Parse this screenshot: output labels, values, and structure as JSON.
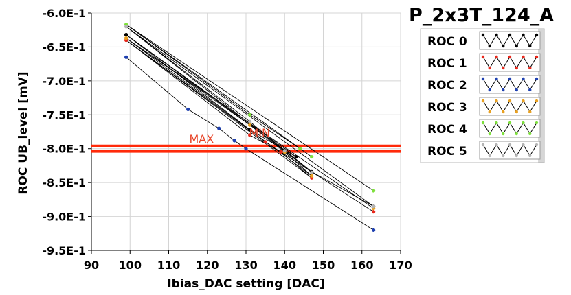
{
  "chart_data": {
    "type": "line",
    "title": "P_2x3T_124_A",
    "xlabel": "Ibias_DAC setting [DAC]",
    "ylabel": "ROC UB_level [mV]",
    "xlim": [
      90,
      170
    ],
    "ylim": [
      -0.95,
      -0.6
    ],
    "x_ticks": [
      90,
      100,
      110,
      120,
      130,
      140,
      150,
      160,
      170
    ],
    "x_tick_labels": [
      "90",
      "100",
      "110",
      "120",
      "130",
      "140",
      "150",
      "160",
      "170"
    ],
    "y_ticks": [
      -0.6,
      -0.65,
      -0.7,
      -0.75,
      -0.8,
      -0.85,
      -0.9,
      -0.95
    ],
    "y_tick_labels": [
      "-6.0E-1",
      "-6.5E-1",
      "-7.0E-1",
      "-7.5E-1",
      "-8.0E-1",
      "-8.5E-1",
      "-9.0E-1",
      "-9.5E-1"
    ],
    "legend_position": "right",
    "series": [
      {
        "name": "ROC 0",
        "color": "#000000",
        "x": [
          99,
          131,
          143,
          99,
          140,
          147,
          163
        ],
        "y": [
          -0.632,
          -0.772,
          -0.812,
          -0.632,
          -0.802,
          -0.834,
          -0.885
        ]
      },
      {
        "name": "ROC 1",
        "color": "#e8261a",
        "x": [
          99,
          131,
          139,
          147,
          99,
          135,
          163
        ],
        "y": [
          -0.64,
          -0.78,
          -0.805,
          -0.843,
          -0.64,
          -0.79,
          -0.893
        ]
      },
      {
        "name": "ROC 2",
        "color": "#1e40b0",
        "x": [
          99,
          115,
          123,
          127,
          130,
          163
        ],
        "y": [
          -0.665,
          -0.742,
          -0.77,
          -0.788,
          -0.8,
          -0.92
        ]
      },
      {
        "name": "ROC 3",
        "color": "#e8a020",
        "x": [
          99,
          131,
          140,
          147,
          99,
          163
        ],
        "y": [
          -0.637,
          -0.765,
          -0.805,
          -0.84,
          -0.637,
          -0.888
        ]
      },
      {
        "name": "ROC 4",
        "color": "#7ee03c",
        "x": [
          99,
          131,
          144,
          147,
          99,
          163
        ],
        "y": [
          -0.617,
          -0.75,
          -0.8,
          -0.812,
          -0.617,
          -0.862
        ]
      },
      {
        "name": "ROC 5",
        "color": "#b4b4b4",
        "x": [
          99,
          131,
          140,
          147,
          99,
          163
        ],
        "y": [
          -0.62,
          -0.76,
          -0.803,
          -0.835,
          -0.62,
          -0.885
        ]
      }
    ],
    "hlines": [
      {
        "label": "MAX",
        "y": -0.796,
        "color": "#ff2a0a"
      },
      {
        "label": "MIN",
        "y": -0.804,
        "color": "#ff2a0a"
      }
    ],
    "annotations": [
      {
        "text": "MAX",
        "x": 118.5,
        "y": -0.791
      },
      {
        "text": "MIN",
        "x": 133.5,
        "y": -0.782
      }
    ]
  }
}
